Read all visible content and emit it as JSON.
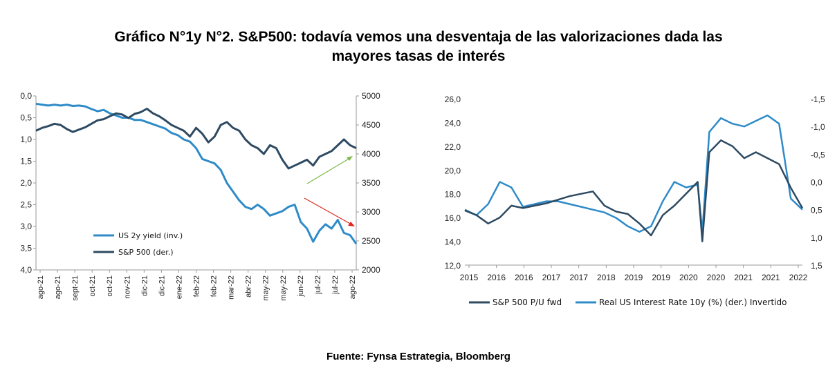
{
  "title_line1": "Gráfico N°1y N°2. S&P500: todavía vemos una desventaja de las valorizaciones dada las",
  "title_line2": "mayores tasas de interés",
  "source": "Fuente: Fynsa Estrategia, Bloomberg",
  "colors": {
    "light_blue": "#2E8BC8",
    "dark_blue": "#2E4A62",
    "green_arrow": "#7DB84A",
    "red_arrow": "#E0261F"
  },
  "chart_data": [
    {
      "type": "line",
      "left_axis": {
        "ticks": [
          "0,0",
          "0,5",
          "1,0",
          "1,5",
          "2,0",
          "2,5",
          "3,0",
          "3,5",
          "4,0"
        ],
        "ylim": [
          0,
          4
        ],
        "inverted": true
      },
      "right_axis": {
        "ticks": [
          "5000",
          "4500",
          "4000",
          "3500",
          "3000",
          "2500",
          "2000"
        ],
        "ylim": [
          2000,
          5000
        ]
      },
      "x_ticks": [
        "ago-21",
        "ago-21",
        "sept-21",
        "oct-21",
        "oct-21",
        "nov-21",
        "dic-21",
        "dic-21",
        "ene-22",
        "feb-22",
        "feb-22",
        "mar-22",
        "abr-22",
        "may-22",
        "may-22",
        "jun-22",
        "jul-22",
        "jul-22",
        "ago-22"
      ],
      "legend": [
        "US 2y yield (inv.)",
        "S&P 500 (der.)"
      ],
      "legend_position": "bottom-left",
      "series": [
        {
          "name": "US 2y yield (inv.)",
          "axis": "left",
          "color": "#2E8BC8",
          "x": [
            0,
            1,
            2,
            3,
            4,
            5,
            6,
            7,
            8,
            9,
            10,
            11,
            12,
            13,
            14,
            15,
            16,
            17,
            18,
            19,
            20,
            21,
            22,
            23,
            24,
            25,
            26,
            27,
            28,
            29,
            30,
            31,
            32,
            33,
            34,
            35,
            36,
            37,
            38,
            39,
            40,
            41,
            42,
            43,
            44,
            45,
            46,
            47,
            48,
            49,
            50,
            51,
            52
          ],
          "values": [
            0.18,
            0.2,
            0.22,
            0.2,
            0.22,
            0.2,
            0.23,
            0.22,
            0.24,
            0.3,
            0.35,
            0.32,
            0.4,
            0.45,
            0.5,
            0.5,
            0.55,
            0.55,
            0.6,
            0.65,
            0.7,
            0.75,
            0.85,
            0.9,
            1.0,
            1.05,
            1.2,
            1.45,
            1.5,
            1.55,
            1.7,
            2.0,
            2.2,
            2.4,
            2.55,
            2.6,
            2.5,
            2.6,
            2.75,
            2.7,
            2.65,
            2.55,
            2.5,
            2.9,
            3.05,
            3.35,
            3.1,
            2.95,
            3.05,
            2.85,
            3.15,
            3.2,
            3.4
          ]
        },
        {
          "name": "S&P 500 (der.)",
          "axis": "right",
          "color": "#2E4A62",
          "x": [
            0,
            1,
            2,
            3,
            4,
            5,
            6,
            7,
            8,
            9,
            10,
            11,
            12,
            13,
            14,
            15,
            16,
            17,
            18,
            19,
            20,
            21,
            22,
            23,
            24,
            25,
            26,
            27,
            28,
            29,
            30,
            31,
            32,
            33,
            34,
            35,
            36,
            37,
            38,
            39,
            40,
            41,
            42,
            43,
            44,
            45,
            46,
            47,
            48,
            49,
            50,
            51,
            52
          ],
          "values": [
            4400,
            4450,
            4480,
            4520,
            4500,
            4430,
            4380,
            4420,
            4460,
            4520,
            4580,
            4600,
            4650,
            4700,
            4680,
            4620,
            4690,
            4720,
            4780,
            4700,
            4650,
            4580,
            4500,
            4450,
            4400,
            4300,
            4450,
            4350,
            4200,
            4300,
            4500,
            4550,
            4450,
            4400,
            4250,
            4150,
            4100,
            4000,
            4150,
            4100,
            3900,
            3750,
            3800,
            3850,
            3900,
            3800,
            3950,
            4000,
            4050,
            4150,
            4250,
            4150,
            4100
          ]
        }
      ]
    },
    {
      "type": "line",
      "left_axis": {
        "ticks": [
          "26,0",
          "24,0",
          "22,0",
          "20,0",
          "18,0",
          "16,0",
          "14,0",
          "12,0"
        ],
        "ylim": [
          12,
          26
        ]
      },
      "right_axis": {
        "ticks": [
          "-1,5",
          "-1,0",
          "-0,5",
          "0,0",
          "0,5",
          "1,0",
          "1,5"
        ],
        "ylim": [
          -1.5,
          1.5
        ],
        "inverted": true
      },
      "x_ticks": [
        "2015",
        "2016",
        "2016",
        "2017",
        "2017",
        "2018",
        "2019",
        "2019",
        "2020",
        "2020",
        "2021",
        "2021",
        "2022"
      ],
      "legend": [
        "S&P 500 P/U fwd",
        "Real US Interest Rate 10y (%) (der.) Invertido"
      ],
      "legend_position": "bottom",
      "series": [
        {
          "name": "S&P 500 P/U fwd",
          "axis": "left",
          "color": "#2E4A62",
          "x": [
            2015.0,
            2015.25,
            2015.5,
            2015.75,
            2016.0,
            2016.25,
            2016.5,
            2016.75,
            2017.0,
            2017.25,
            2017.5,
            2017.75,
            2018.0,
            2018.25,
            2018.5,
            2018.75,
            2019.0,
            2019.25,
            2019.5,
            2019.75,
            2020.0,
            2020.1,
            2020.25,
            2020.5,
            2020.75,
            2021.0,
            2021.25,
            2021.5,
            2021.75,
            2022.0,
            2022.25
          ],
          "values": [
            16.6,
            16.2,
            15.5,
            16.0,
            17.0,
            16.8,
            17.0,
            17.2,
            17.5,
            17.8,
            18.0,
            18.2,
            17.0,
            16.5,
            16.3,
            15.5,
            14.5,
            16.2,
            17.0,
            18.0,
            19.0,
            14.0,
            21.5,
            22.5,
            22.0,
            21.0,
            21.5,
            21.0,
            20.5,
            18.5,
            16.8
          ]
        },
        {
          "name": "Real US Interest Rate 10y (%) (der.) Invertido",
          "axis": "right",
          "color": "#2E8BC8",
          "x": [
            2015.0,
            2015.25,
            2015.5,
            2015.75,
            2016.0,
            2016.25,
            2016.5,
            2016.75,
            2017.0,
            2017.25,
            2017.5,
            2017.75,
            2018.0,
            2018.25,
            2018.5,
            2018.75,
            2019.0,
            2019.25,
            2019.5,
            2019.75,
            2020.0,
            2020.1,
            2020.25,
            2020.5,
            2020.75,
            2021.0,
            2021.25,
            2021.5,
            2021.75,
            2022.0,
            2022.25
          ],
          "values": [
            0.5,
            0.6,
            0.4,
            0.0,
            0.1,
            0.45,
            0.4,
            0.35,
            0.35,
            0.4,
            0.45,
            0.5,
            0.55,
            0.65,
            0.8,
            0.9,
            0.8,
            0.35,
            0.0,
            0.1,
            0.05,
            0.9,
            -0.9,
            -1.15,
            -1.05,
            -1.0,
            -1.1,
            -1.2,
            -1.05,
            0.3,
            0.5
          ]
        }
      ]
    }
  ]
}
